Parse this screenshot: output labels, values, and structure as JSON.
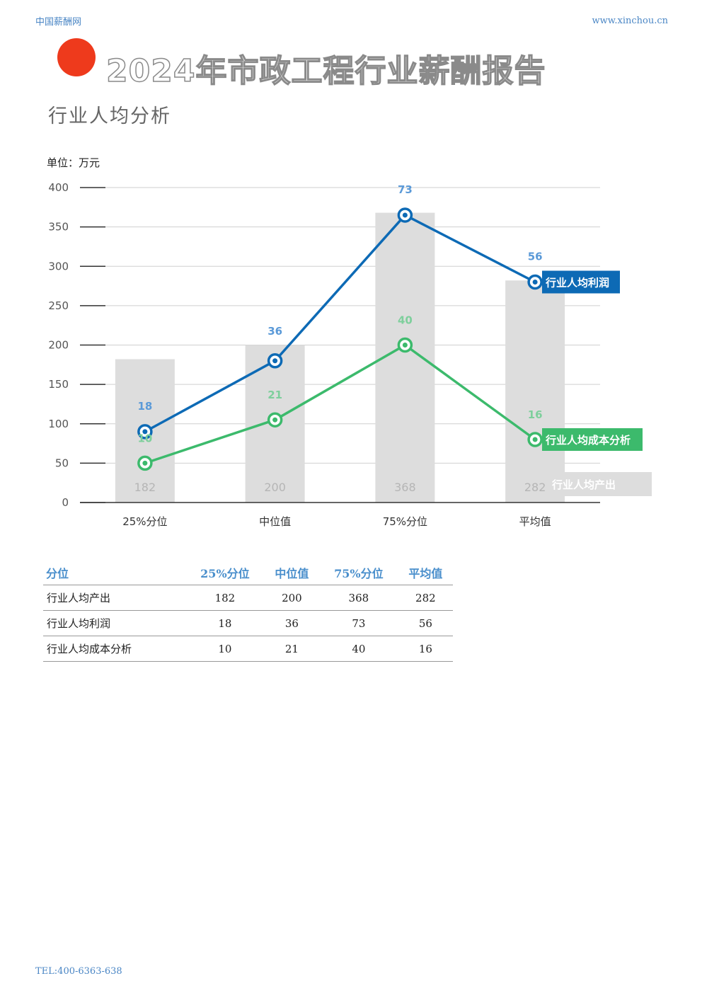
{
  "header": {
    "site_name": "中国薪酬网",
    "site_url": "www.xinchou.cn",
    "report_title": "2024年市政工程行业薪酬报告",
    "section_title": "行业人均分析"
  },
  "colors": {
    "accent_dot": "#ee3a1c",
    "profit": "#0d6ab5",
    "cost": "#3cba6c",
    "output": "#dddddd"
  },
  "chart_data": {
    "type": "bar+line",
    "unit": "单位：万元",
    "categories": [
      "25%分位",
      "中位值",
      "75%分位",
      "平均值"
    ],
    "y_ticks": [
      "0",
      "50",
      "100",
      "150",
      "200",
      "250",
      "300",
      "350",
      "400"
    ],
    "ylim": [
      0,
      400
    ],
    "grid": true,
    "series": [
      {
        "name": "行业人均产出",
        "kind": "bar",
        "values": [
          182,
          200,
          368,
          282
        ],
        "labels": [
          "182",
          "200",
          "368",
          "282"
        ]
      },
      {
        "name": "行业人均利润",
        "kind": "line",
        "values": [
          18,
          36,
          73,
          56
        ],
        "plot_y": [
          90,
          180,
          365,
          280
        ],
        "labels": [
          "18",
          "36",
          "73",
          "56"
        ]
      },
      {
        "name": "行业人均成本分析",
        "kind": "line",
        "values": [
          10,
          21,
          40,
          16
        ],
        "plot_y": [
          50,
          105,
          200,
          80
        ],
        "labels": [
          "10",
          "21",
          "40",
          "16"
        ]
      }
    ]
  },
  "table": {
    "headers": [
      "分位",
      "25%分位",
      "中位值",
      "75%分位",
      "平均值"
    ],
    "rows": [
      [
        "行业人均产出",
        "182",
        "200",
        "368",
        "282"
      ],
      [
        "行业人均利润",
        "18",
        "36",
        "73",
        "56"
      ],
      [
        "行业人均成本分析",
        "10",
        "21",
        "40",
        "16"
      ]
    ]
  },
  "footer": {
    "tel": "TEL:400-6363-638"
  }
}
